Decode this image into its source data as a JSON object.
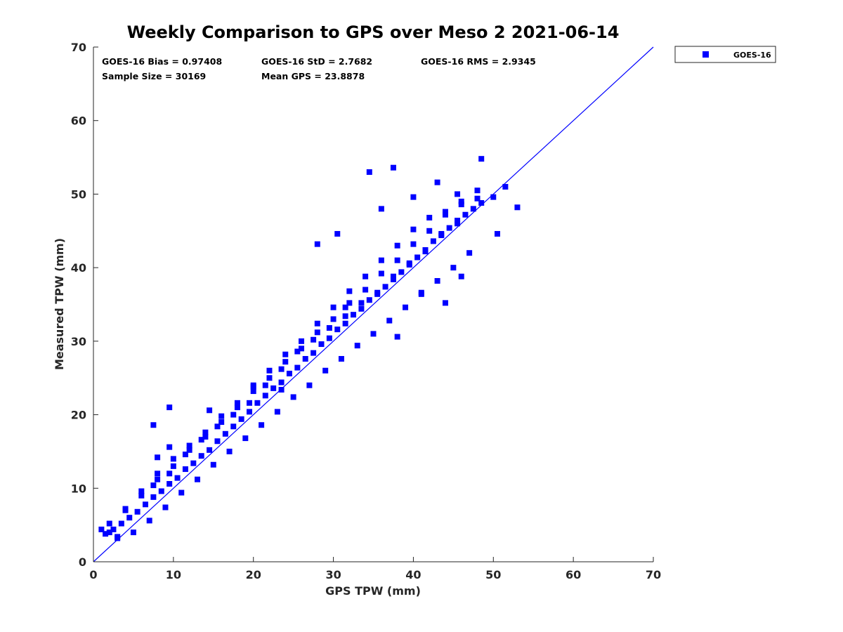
{
  "chart_data": {
    "type": "scatter",
    "title": "Weekly Comparison to GPS over Meso 2 2021-06-14",
    "xlabel": "GPS TPW (mm)",
    "ylabel": "Measured TPW (mm)",
    "xlim": [
      0,
      70
    ],
    "ylim": [
      0,
      70
    ],
    "xticks": [
      "0",
      "10",
      "20",
      "30",
      "40",
      "50",
      "60",
      "70"
    ],
    "yticks": [
      "0",
      "10",
      "20",
      "30",
      "40",
      "50",
      "60",
      "70"
    ],
    "grid": false,
    "legend_position": "outside-top-right",
    "colors": {
      "series": "#0000ff",
      "reference_line": "#0000ff",
      "axis": "#262626"
    },
    "stats": {
      "bias": "GOES-16 Bias = 0.97408",
      "std": "GOES-16 StD = 2.7682",
      "rms": "GOES-16 RMS = 2.9345",
      "sample_size": "Sample Size = 30169",
      "mean_gps": "Mean GPS = 23.8878"
    },
    "reference_line": {
      "x": [
        0,
        70
      ],
      "y": [
        0,
        70
      ]
    },
    "series": [
      {
        "name": "GOES-16",
        "marker": "square",
        "x": [
          1.5,
          2.5,
          3.5,
          4.5,
          5.5,
          6.5,
          7.5,
          8.5,
          9.5,
          10.5,
          11.5,
          12.5,
          13.5,
          14.5,
          15.5,
          16.5,
          17.5,
          18.5,
          19.5,
          20.5,
          21.5,
          22.5,
          23.5,
          24.5,
          25.5,
          26.5,
          27.5,
          28.5,
          29.5,
          30.5,
          31.5,
          32.5,
          33.5,
          34.5,
          35.5,
          36.5,
          37.5,
          38.5,
          39.5,
          40.5,
          41.5,
          42.5,
          43.5,
          44.5,
          45.5,
          46.5,
          47.5,
          48.5,
          2.0,
          4.0,
          6.0,
          8.0,
          10.0,
          12.0,
          14.0,
          16.0,
          18.0,
          20.0,
          22.0,
          24.0,
          26.0,
          28.0,
          30.0,
          32.0,
          34.0,
          36.0,
          38.0,
          40.0,
          42.0,
          44.0,
          46.0,
          48.0,
          3.0,
          5.0,
          7.0,
          9.0,
          11.0,
          13.0,
          15.0,
          17.0,
          19.0,
          21.0,
          23.0,
          25.0,
          27.0,
          29.0,
          31.0,
          33.0,
          35.0,
          37.0,
          39.0,
          41.0,
          43.0,
          45.0,
          47.0,
          4.0,
          6.0,
          8.0,
          10.0,
          12.0,
          14.0,
          16.0,
          18.0,
          20.0,
          22.0,
          24.0,
          26.0,
          28.0,
          30.0,
          32.0,
          34.0,
          36.0,
          38.0,
          40.0,
          42.0,
          44.0,
          46.0,
          7.5,
          9.5,
          11.5,
          13.5,
          15.5,
          17.5,
          19.5,
          21.5,
          23.5,
          25.5,
          27.5,
          29.5,
          31.5,
          33.5,
          35.5,
          37.5,
          39.5,
          41.5,
          43.5,
          45.5,
          1.0,
          2.0,
          3.0,
          8.0,
          9.5,
          28.0,
          30.5,
          34.5,
          36.0,
          37.5,
          40.0,
          43.0,
          45.5,
          48.0,
          48.5,
          50.0,
          51.5,
          53.0,
          7.5,
          9.5,
          14.5,
          20.0,
          23.5,
          31.5,
          38.0,
          41.0,
          44.0,
          46.0,
          50.5
        ],
        "y": [
          3.8,
          4.4,
          5.2,
          6.0,
          6.8,
          7.8,
          8.8,
          9.6,
          10.6,
          11.4,
          12.6,
          13.4,
          14.4,
          15.2,
          16.4,
          17.4,
          18.4,
          19.4,
          20.4,
          21.6,
          22.6,
          23.6,
          24.4,
          25.6,
          26.4,
          27.6,
          28.4,
          29.6,
          30.4,
          31.6,
          32.4,
          33.6,
          34.4,
          35.6,
          36.4,
          37.4,
          38.4,
          39.4,
          40.4,
          41.4,
          42.4,
          43.6,
          44.4,
          45.4,
          46.4,
          47.2,
          48.0,
          48.8,
          5.2,
          7.0,
          9.0,
          11.2,
          13.0,
          15.2,
          17.0,
          19.0,
          21.0,
          23.2,
          25.0,
          27.2,
          29.0,
          31.2,
          33.0,
          35.2,
          37.0,
          39.2,
          41.0,
          43.2,
          45.0,
          47.2,
          49.0,
          50.5,
          3.2,
          4.0,
          5.6,
          7.4,
          9.4,
          11.2,
          13.2,
          15.0,
          16.8,
          18.6,
          20.4,
          22.4,
          24.0,
          26.0,
          27.6,
          29.4,
          31.0,
          32.8,
          34.6,
          36.4,
          38.2,
          40.0,
          42.0,
          7.2,
          9.6,
          12.0,
          14.0,
          15.8,
          17.6,
          19.8,
          21.6,
          23.8,
          26.0,
          28.2,
          30.0,
          32.4,
          34.6,
          36.8,
          38.8,
          41.0,
          43.0,
          45.2,
          46.8,
          47.6,
          48.6,
          10.4,
          12.0,
          14.6,
          16.6,
          18.4,
          20.0,
          21.6,
          24.0,
          26.2,
          28.6,
          30.2,
          31.8,
          33.4,
          35.2,
          36.6,
          38.8,
          40.6,
          42.2,
          44.6,
          46.0,
          4.4,
          4.0,
          3.4,
          14.2,
          15.6,
          43.2,
          44.6,
          53.0,
          48.0,
          53.6,
          49.6,
          51.6,
          50.0,
          49.4,
          54.8,
          49.6,
          51.0,
          48.2,
          18.6,
          21.0,
          20.6,
          24.0,
          23.4,
          34.6,
          30.6,
          36.6,
          35.2,
          38.8,
          44.6
        ]
      }
    ]
  }
}
